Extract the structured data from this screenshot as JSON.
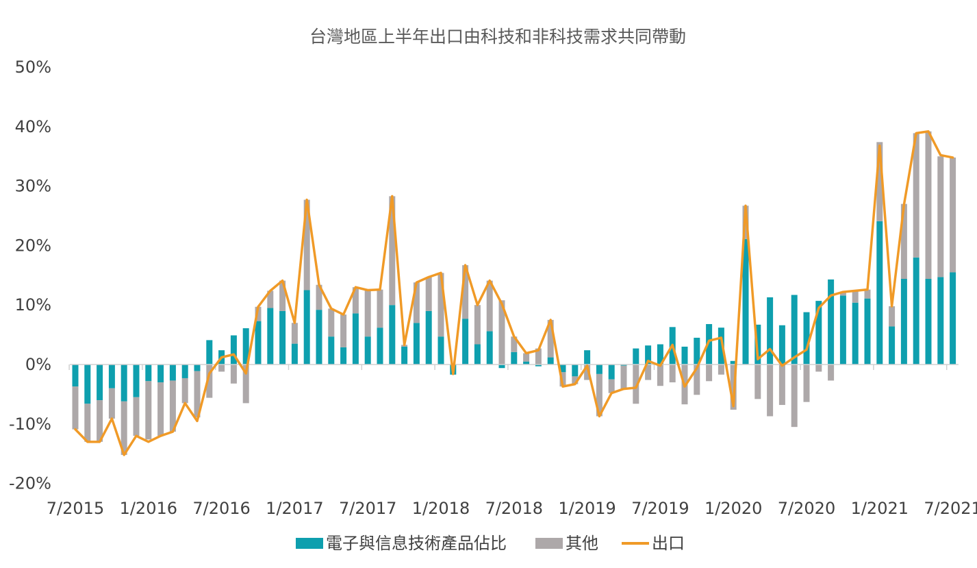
{
  "chart_data": {
    "type": "bar",
    "title": "台灣地區上半年出口由科技和非科技需求共同帶動",
    "ylim": [
      -20,
      50
    ],
    "y_ticks": [
      "50%",
      "40%",
      "30%",
      "20%",
      "10%",
      "0%",
      "-10%",
      "-20%"
    ],
    "y_tick_values": [
      50,
      40,
      30,
      20,
      10,
      0,
      -10,
      -20
    ],
    "x_ticks": [
      "7/2015",
      "1/2016",
      "7/2016",
      "1/2017",
      "7/2017",
      "1/2018",
      "7/2018",
      "1/2019",
      "7/2019",
      "1/2020",
      "7/2020",
      "1/2021",
      "7/2021"
    ],
    "x_tick_index": [
      0,
      6,
      12,
      18,
      24,
      30,
      36,
      42,
      48,
      54,
      60,
      66,
      72
    ],
    "grid": false,
    "legend_position": "bottom",
    "stacked": true,
    "colors": {
      "electronics": "#0e9fae",
      "other": "#ada8a9",
      "exports": "#f09a27",
      "axis": "#d0d0d0"
    },
    "series": [
      {
        "name": "電子與信息技術產品佔比",
        "kind": "bar",
        "values": [
          -3.7,
          -6.6,
          -6,
          -4,
          -6.2,
          -5.5,
          -2.8,
          -3,
          -2.7,
          -2.3,
          -1.1,
          4.1,
          2.4,
          4.9,
          6.1,
          7.3,
          9.5,
          9,
          3.5,
          12.5,
          9.2,
          4.7,
          2.9,
          8.6,
          4.7,
          6.2,
          10,
          3,
          7,
          9,
          4.7,
          -1.7,
          7.7,
          3.4,
          5.6,
          -0.6,
          2.1,
          0.5,
          -0.3,
          1.2,
          -1.3,
          -2,
          2.4,
          -1.6,
          -2.5,
          -0.2,
          2.7,
          3.2,
          3.4,
          6.3,
          3,
          4.5,
          6.8,
          6.2,
          0.6,
          21.1,
          6.7,
          11.3,
          6.6,
          11.7,
          8.8,
          10.7,
          14.3,
          11.6,
          10.4,
          11.1,
          24.1,
          6.4,
          14.4,
          18,
          14.4,
          14.7,
          15.5
        ]
      },
      {
        "name": "其他",
        "kind": "bar",
        "values": [
          -7.2,
          -6.4,
          -7,
          -5.1,
          -9,
          -6.5,
          -9.8,
          -9,
          -8.6,
          -4.2,
          -7.8,
          -5.6,
          -1.2,
          -3.2,
          -6.5,
          2.4,
          2.9,
          5.1,
          3.5,
          15.2,
          4.2,
          4.7,
          5.5,
          4.4,
          7.8,
          6.4,
          18.3,
          0.3,
          6.8,
          5.7,
          10.7,
          0.1,
          9,
          6.6,
          8.5,
          10.8,
          2.6,
          1.4,
          2.7,
          6.3,
          -2.4,
          -1.3,
          -2.6,
          -7.1,
          -2.3,
          -3.9,
          -6.6,
          -2.6,
          -3.6,
          -3,
          -6.7,
          -5.1,
          -2.8,
          -1.7,
          -7.6,
          5.6,
          -5.8,
          -8.7,
          -6.8,
          -10.5,
          -6.3,
          -1.2,
          -2.7,
          0.6,
          2,
          1.5,
          13.3,
          3.4,
          12.6,
          20.9,
          24.8,
          20.3,
          19.3
        ]
      },
      {
        "name": "出口",
        "kind": "line",
        "values": [
          -10.9,
          -13,
          -13,
          -9.1,
          -15.2,
          -12,
          -13,
          -12,
          -11.3,
          -6.5,
          -9.5,
          -1.5,
          1.2,
          1.7,
          -1.5,
          9.7,
          12.4,
          14.1,
          7,
          27.7,
          13.4,
          9.4,
          8.4,
          13,
          12.5,
          12.6,
          28.3,
          3.3,
          13.8,
          14.7,
          15.4,
          -1.6,
          16.7,
          10,
          14.1,
          10.2,
          4.7,
          1.9,
          2.4,
          7.5,
          -3.7,
          -3.3,
          -0.2,
          -8.7,
          -4.8,
          -4.1,
          -3.9,
          0.6,
          -0.2,
          3.3,
          -3.7,
          -0.6,
          4,
          4.5,
          -7,
          26.7,
          0.9,
          2.6,
          -0.2,
          1.2,
          2.5,
          9.5,
          11.6,
          12.2,
          12.4,
          12.6,
          36.8,
          9.8,
          26.9,
          38.9,
          39.2,
          35.2,
          34.8
        ]
      }
    ]
  }
}
